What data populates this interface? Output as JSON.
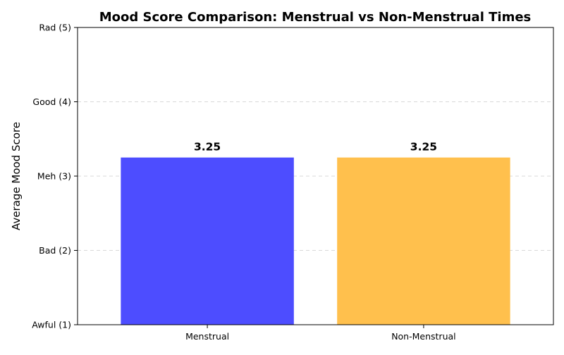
{
  "chart_data": {
    "type": "bar",
    "title": "Mood Score Comparison: Menstrual vs Non-Menstrual Times",
    "xlabel": "",
    "ylabel": "Average Mood Score",
    "categories": [
      "Menstrual",
      "Non-Menstrual"
    ],
    "values": [
      3.25,
      3.25
    ],
    "data_labels": [
      "3.25",
      "3.25"
    ],
    "bar_colors": [
      "#4d4dff",
      "#ffc04d"
    ],
    "ylim": [
      1,
      5
    ],
    "yticks": [
      1,
      2,
      3,
      4,
      5
    ],
    "ytick_labels": [
      "Awful (1)",
      "Bad (2)",
      "Meh (3)",
      "Good (4)",
      "Rad (5)"
    ],
    "grid": "y-dashed",
    "legend": "none"
  }
}
